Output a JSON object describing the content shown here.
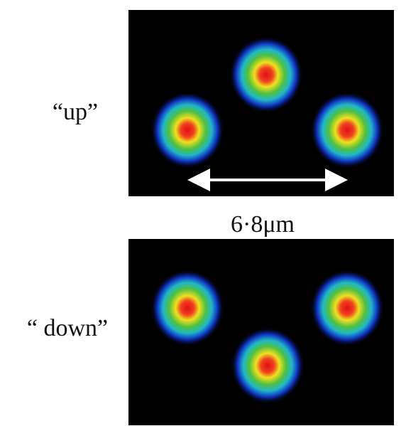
{
  "labels": {
    "up": "“up”",
    "down": "“ down”",
    "scale": "6·8μm"
  }
}
